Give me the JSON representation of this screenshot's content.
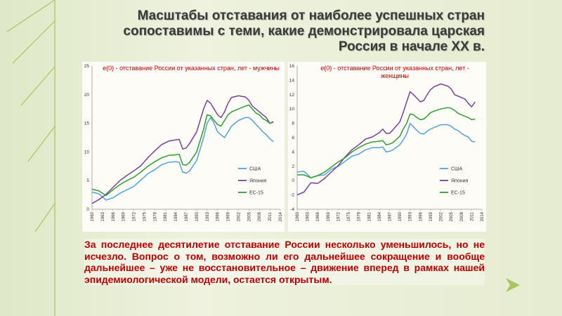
{
  "slide": {
    "title": "Масштабы отставания от наиболее успешных стран сопоставимы с теми, какие демонстрировала царская Россия в начале ХХ в.",
    "caption": "За последнее десятилетие отставание России несколько уменьшилось, но не исчезло. Вопрос о том, возможно ли его дальнейшее сокращение и вообще дальнейшее – уже не восстановительное – движение вперед в рамках нашей эпидемиологической модели, остается открытым.",
    "colors": {
      "background": "#e9efd6",
      "accent_green": "#a9c65a",
      "title_text": "#3a3a3a",
      "caption_text": "#c00000"
    }
  },
  "chart_data": [
    {
      "type": "line",
      "title": "e(0) - отставание России от указанных стран, лет - мужчины",
      "x_tick_labels": [
        "1960",
        "1963",
        "1966",
        "1969",
        "1972",
        "1975",
        "1978",
        "1981",
        "1984",
        "1987",
        "1990",
        "1993",
        "1996",
        "1999",
        "2002",
        "2005",
        "2008",
        "2011",
        "2014"
      ],
      "xlim": [
        1960,
        2014
      ],
      "ylim": [
        0,
        25
      ],
      "y_ticks": [
        0,
        5,
        10,
        15,
        20,
        25
      ],
      "legend_position": "bottom-right",
      "grid": false,
      "series": [
        {
          "name": "США",
          "color": "#4fa3e0",
          "x": [
            1960,
            1962,
            1964,
            1966,
            1968,
            1970,
            1972,
            1974,
            1976,
            1978,
            1980,
            1982,
            1984,
            1985,
            1986,
            1987,
            1988,
            1990,
            1991,
            1992,
            1993,
            1994,
            1995,
            1996,
            1997,
            1998,
            1999,
            2000,
            2002,
            2004,
            2005,
            2006,
            2007,
            2008,
            2009,
            2010,
            2011,
            2012
          ],
          "values": [
            3,
            2.7,
            1.6,
            2.0,
            2.8,
            3.4,
            4.0,
            5.1,
            6.2,
            6.9,
            7.8,
            8.2,
            8.3,
            8.2,
            6.5,
            6.3,
            6.7,
            8.5,
            10.5,
            12.5,
            15.0,
            16.0,
            15.0,
            13.5,
            13.0,
            12.5,
            13.5,
            14.5,
            15.5,
            16.0,
            16.0,
            15.5,
            14.8,
            14.2,
            13.5,
            13.0,
            12.3,
            11.8
          ]
        },
        {
          "name": "Япония",
          "color": "#7b3fa0",
          "x": [
            1960,
            1962,
            1964,
            1966,
            1968,
            1970,
            1972,
            1974,
            1976,
            1978,
            1980,
            1982,
            1984,
            1985,
            1986,
            1987,
            1988,
            1990,
            1991,
            1992,
            1993,
            1994,
            1995,
            1996,
            1997,
            1998,
            1999,
            2000,
            2002,
            2004,
            2005,
            2006,
            2007,
            2008,
            2009,
            2010,
            2011,
            2012
          ],
          "values": [
            1.0,
            1.7,
            2.6,
            3.8,
            5.0,
            5.9,
            6.7,
            7.6,
            9.0,
            10.2,
            11.3,
            11.9,
            12.1,
            12.2,
            10.5,
            10.7,
            11.5,
            13.5,
            15.5,
            17.5,
            19.0,
            18.5,
            17.5,
            16.5,
            16.0,
            17.0,
            18.5,
            19.5,
            19.8,
            19.6,
            19.0,
            18.0,
            17.5,
            17.0,
            16.5,
            16.0,
            15.0,
            15.3
          ]
        },
        {
          "name": "ЕС-15",
          "color": "#2ca02c",
          "x": [
            1960,
            1962,
            1964,
            1966,
            1968,
            1970,
            1972,
            1974,
            1976,
            1978,
            1980,
            1982,
            1984,
            1985,
            1986,
            1987,
            1988,
            1990,
            1991,
            1992,
            1993,
            1994,
            1995,
            1996,
            1997,
            1998,
            1999,
            2000,
            2002,
            2004,
            2005,
            2006,
            2007,
            2008,
            2009,
            2010,
            2011,
            2012
          ],
          "values": [
            3.5,
            3.2,
            2.4,
            3.4,
            4.3,
            5.0,
            5.6,
            6.5,
            7.5,
            8.3,
            9.0,
            9.4,
            9.5,
            9.6,
            7.8,
            7.7,
            8.2,
            10.0,
            12.0,
            14.0,
            16.5,
            16.3,
            15.5,
            14.8,
            14.5,
            15.5,
            16.5,
            17.0,
            17.5,
            18.0,
            18.2,
            17.5,
            16.8,
            16.5,
            15.8,
            15.5,
            15.0,
            15.2
          ]
        }
      ]
    },
    {
      "type": "line",
      "title": "e(0) - отставание России от указанных стран, лет - женщины",
      "x_tick_labels": [
        "1960",
        "1963",
        "1966",
        "1969",
        "1972",
        "1975",
        "1978",
        "1981",
        "1984",
        "1987",
        "1990",
        "1993",
        "1996",
        "1999",
        "2002",
        "2005",
        "2008",
        "2011",
        "2014"
      ],
      "xlim": [
        1960,
        2014
      ],
      "ylim": [
        -4,
        16
      ],
      "y_ticks": [
        -4,
        -2,
        0,
        2,
        4,
        6,
        8,
        10,
        12,
        14,
        16
      ],
      "legend_position": "bottom-right",
      "grid": false,
      "series": [
        {
          "name": "США",
          "color": "#4fa3e0",
          "x": [
            1960,
            1962,
            1964,
            1966,
            1968,
            1970,
            1972,
            1974,
            1976,
            1978,
            1980,
            1982,
            1984,
            1985,
            1986,
            1987,
            1988,
            1990,
            1991,
            1992,
            1993,
            1994,
            1995,
            1996,
            1997,
            1998,
            1999,
            2000,
            2002,
            2004,
            2005,
            2006,
            2007,
            2008,
            2009,
            2010,
            2011,
            2012
          ],
          "values": [
            1.2,
            1.3,
            0.4,
            0.7,
            0.8,
            1.6,
            2.0,
            2.7,
            3.4,
            3.7,
            4.3,
            4.6,
            4.6,
            4.7,
            4.0,
            4.1,
            4.3,
            5.0,
            5.7,
            6.5,
            8.0,
            7.5,
            7.0,
            6.6,
            6.5,
            6.9,
            7.2,
            7.4,
            7.8,
            7.8,
            7.6,
            7.2,
            7.0,
            6.6,
            6.3,
            6.1,
            5.5,
            5.4
          ]
        },
        {
          "name": "Япония",
          "color": "#7b3fa0",
          "x": [
            1960,
            1962,
            1964,
            1966,
            1968,
            1970,
            1972,
            1974,
            1976,
            1978,
            1980,
            1982,
            1984,
            1985,
            1986,
            1987,
            1988,
            1990,
            1991,
            1992,
            1993,
            1994,
            1995,
            1996,
            1997,
            1998,
            1999,
            2000,
            2002,
            2004,
            2005,
            2006,
            2007,
            2008,
            2009,
            2010,
            2011,
            2012
          ],
          "values": [
            -2.0,
            -1.6,
            -0.3,
            -0.4,
            0.3,
            1.2,
            2.1,
            3.3,
            4.3,
            5.0,
            5.8,
            6.1,
            6.7,
            7.2,
            6.6,
            6.6,
            7.1,
            8.2,
            9.5,
            11.0,
            12.4,
            12.0,
            11.5,
            11.0,
            11.2,
            12.0,
            12.7,
            13.1,
            13.5,
            13.2,
            12.8,
            12.0,
            11.8,
            11.6,
            11.4,
            10.8,
            10.3,
            11.0
          ]
        },
        {
          "name": "ЕС-15",
          "color": "#2ca02c",
          "x": [
            1960,
            1962,
            1964,
            1966,
            1968,
            1970,
            1972,
            1974,
            1976,
            1978,
            1980,
            1982,
            1984,
            1985,
            1986,
            1987,
            1988,
            1990,
            1991,
            1992,
            1993,
            1994,
            1995,
            1996,
            1997,
            1998,
            1999,
            2000,
            2002,
            2004,
            2005,
            2006,
            2007,
            2008,
            2009,
            2010,
            2011,
            2012
          ],
          "values": [
            0.8,
            0.8,
            0.4,
            0.7,
            1.2,
            1.9,
            2.6,
            3.2,
            4.0,
            4.6,
            5.1,
            5.4,
            5.5,
            5.6,
            5.0,
            5.1,
            5.3,
            6.2,
            7.2,
            8.0,
            9.3,
            9.2,
            8.8,
            8.5,
            8.6,
            9.0,
            9.5,
            9.7,
            10.0,
            10.2,
            10.1,
            9.8,
            9.4,
            9.2,
            9.0,
            8.8,
            8.5,
            8.6
          ]
        }
      ]
    }
  ]
}
